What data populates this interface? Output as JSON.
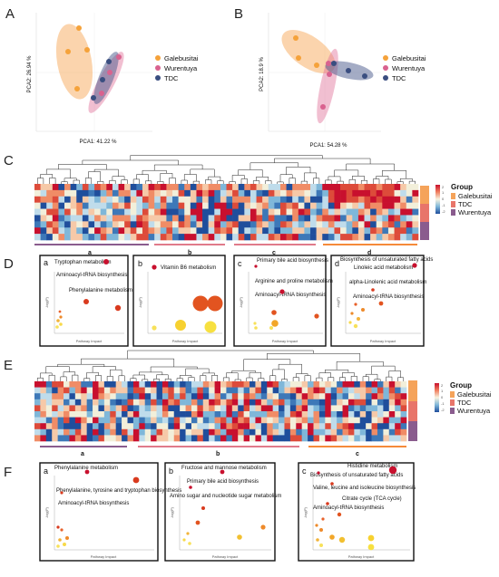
{
  "panels": {
    "A": {
      "letter": "A",
      "xlabel": "PCA1: 41.22 %",
      "ylabel": "PCA2: 26.94 %",
      "legend": [
        {
          "name": "Galebusitai",
          "color": "#F5A23A"
        },
        {
          "name": "Wurentuya",
          "color": "#D9628F"
        },
        {
          "name": "TDC",
          "color": "#3A4E80"
        }
      ]
    },
    "B": {
      "letter": "B",
      "xlabel": "PCA1: 54.28 %",
      "ylabel": "PCA2: 18.9 %",
      "legend": [
        {
          "name": "Galebusitai",
          "color": "#F5A23A"
        },
        {
          "name": "Wurentuya",
          "color": "#D9628F"
        },
        {
          "name": "TDC",
          "color": "#3A4E80"
        }
      ]
    },
    "C": {
      "letter": "C",
      "group_title": "Group",
      "groups": [
        {
          "name": "Galebusitai",
          "color": "#F5A35A"
        },
        {
          "name": "TDC",
          "color": "#E8756A"
        },
        {
          "name": "Wurentuya",
          "color": "#8A5C8E"
        }
      ],
      "scale_ticks": [
        "2",
        "1",
        "0",
        "-1",
        "-2"
      ],
      "clusters": [
        {
          "label": "a",
          "color": "#8A5C8E"
        },
        {
          "label": "b",
          "color": "#E07A8A"
        },
        {
          "label": "c",
          "color": "#E07A8A"
        },
        {
          "label": "d",
          "color": "#F58A3A"
        }
      ]
    },
    "D": {
      "letter": "D",
      "xlabel": "Pathway Impact",
      "ylabel": "-log(P)",
      "subs": [
        {
          "letter": "a",
          "labels": [
            "Tryptophan metabolism",
            "Aminoacyl-tRNA biosynthesis",
            "Phenylalanine metabolism"
          ]
        },
        {
          "letter": "b",
          "labels": [
            "Vitamin B6 metabolism"
          ]
        },
        {
          "letter": "c",
          "labels": [
            "Primary bile acid biosynthesis",
            "Arginine and proline metabolism",
            "Aminoacyl-tRNA biosynthesis"
          ]
        },
        {
          "letter": "d",
          "labels": [
            "Biosynthesis of unsaturated fatty acids",
            "Linoleic acid metabolism",
            "alpha-Linolenic acid metabolism",
            "Aminoacyl-tRNA biosynthesis"
          ]
        }
      ]
    },
    "E": {
      "letter": "E",
      "group_title": "Group",
      "groups": [
        {
          "name": "Galebusitai",
          "color": "#F5A35A"
        },
        {
          "name": "TDC",
          "color": "#E8756A"
        },
        {
          "name": "Wurentuya",
          "color": "#8A5C8E"
        }
      ],
      "scale_ticks": [
        "2",
        "1",
        "0",
        "-1",
        "-2"
      ],
      "clusters": [
        {
          "label": "a",
          "color": "#8A5C8E"
        },
        {
          "label": "b",
          "color": "#E07A8A"
        },
        {
          "label": "c",
          "color": "#F58A3A"
        }
      ]
    },
    "F": {
      "letter": "F",
      "xlabel": "Pathway Impact",
      "ylabel": "-log(P)",
      "subs": [
        {
          "letter": "a",
          "labels": [
            "Phenylalanine metabolism",
            "Phenylalanine, tyrosine and tryptophan biosynthesis",
            "Aminoacyl-tRNA biosynthesis"
          ]
        },
        {
          "letter": "b",
          "labels": [
            "Fructose and mannose metabolism",
            "Primary bile acid biosynthesis",
            "Amino sugar and nucleotide sugar metabolism"
          ]
        },
        {
          "letter": "c",
          "labels": [
            "Histidine metabolism",
            "Biosynthesis of unsaturated fatty acids",
            "Valine, leucine and isoleucine biosynthesis",
            "Citrate cycle (TCA cycle)",
            "Aminoacyl-tRNA biosynthesis"
          ]
        }
      ]
    }
  }
}
